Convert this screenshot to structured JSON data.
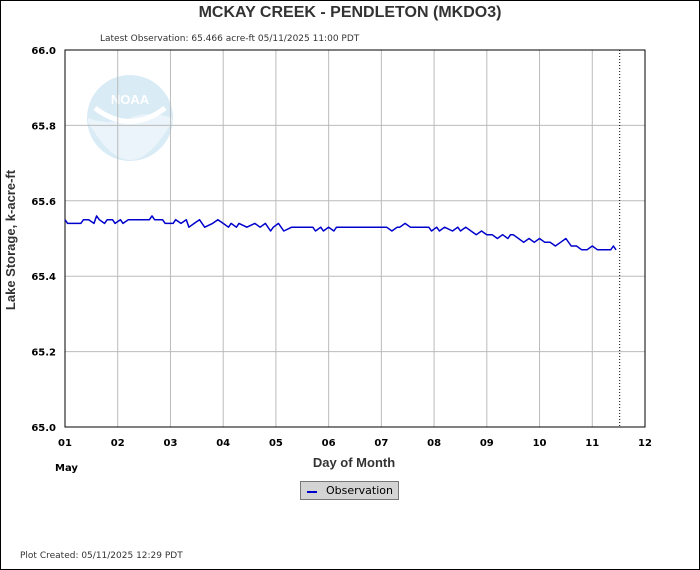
{
  "page": {
    "title": "MCKAY CREEK - PENDLETON  (MKDO3)",
    "latest_observation": "Latest Observation: 65.466 acre-ft 05/11/2025 11:00 PDT",
    "plot_created": "Plot Created: 05/11/2025 12:29 PDT",
    "logo_text": "NOAA"
  },
  "chart_data": {
    "type": "line",
    "title": "MCKAY CREEK - PENDLETON  (MKDO3)",
    "xlabel": "Day of Month",
    "ylabel": "Lake Storage, k-acre-ft",
    "month_label": "May",
    "xlim": [
      1,
      12
    ],
    "ylim": [
      65.0,
      66.0
    ],
    "x_ticks": [
      "01",
      "02",
      "03",
      "04",
      "05",
      "06",
      "07",
      "08",
      "09",
      "10",
      "11",
      "12"
    ],
    "y_ticks": [
      "65.0",
      "65.2",
      "65.4",
      "65.6",
      "65.8",
      "66.0"
    ],
    "grid": true,
    "forecast_divider_x": 11.52,
    "colors": {
      "observation": "#0000cc",
      "grid": "#bbbbbb",
      "plot_border": "#000000"
    },
    "legend": {
      "position": "bottom-center",
      "entries": [
        "Observation"
      ]
    },
    "series": [
      {
        "name": "Observation",
        "x": [
          1.0,
          1.05,
          1.3,
          1.35,
          1.45,
          1.55,
          1.6,
          1.65,
          1.75,
          1.8,
          1.9,
          1.95,
          2.05,
          2.1,
          2.2,
          2.25,
          2.3,
          2.45,
          2.6,
          2.65,
          2.7,
          2.75,
          2.85,
          2.9,
          3.05,
          3.1,
          3.2,
          3.3,
          3.35,
          3.45,
          3.55,
          3.65,
          3.8,
          3.9,
          4.0,
          4.1,
          4.15,
          4.25,
          4.3,
          4.45,
          4.6,
          4.7,
          4.8,
          4.9,
          4.95,
          5.05,
          5.15,
          5.3,
          5.5,
          5.7,
          5.75,
          5.85,
          5.9,
          6.0,
          6.1,
          6.15,
          6.3,
          6.5,
          6.7,
          6.9,
          7.1,
          7.2,
          7.3,
          7.35,
          7.45,
          7.55,
          7.7,
          7.9,
          7.95,
          8.05,
          8.1,
          8.2,
          8.35,
          8.45,
          8.5,
          8.6,
          8.7,
          8.8,
          8.9,
          9.0,
          9.1,
          9.2,
          9.3,
          9.4,
          9.45,
          9.5,
          9.6,
          9.7,
          9.8,
          9.9,
          10.0,
          10.1,
          10.2,
          10.3,
          10.4,
          10.5,
          10.6,
          10.7,
          10.8,
          10.9,
          11.0,
          11.1,
          11.2,
          11.25,
          11.3,
          11.35,
          11.4,
          11.45
        ],
        "values": [
          65.55,
          65.54,
          65.54,
          65.55,
          65.55,
          65.54,
          65.56,
          65.55,
          65.54,
          65.55,
          65.55,
          65.54,
          65.55,
          65.54,
          65.55,
          65.55,
          65.55,
          65.55,
          65.55,
          65.56,
          65.55,
          65.55,
          65.55,
          65.54,
          65.54,
          65.55,
          65.54,
          65.55,
          65.53,
          65.54,
          65.55,
          65.53,
          65.54,
          65.55,
          65.54,
          65.53,
          65.54,
          65.53,
          65.54,
          65.53,
          65.54,
          65.53,
          65.54,
          65.52,
          65.53,
          65.54,
          65.52,
          65.53,
          65.53,
          65.53,
          65.52,
          65.53,
          65.52,
          65.53,
          65.52,
          65.53,
          65.53,
          65.53,
          65.53,
          65.53,
          65.53,
          65.52,
          65.53,
          65.53,
          65.54,
          65.53,
          65.53,
          65.53,
          65.52,
          65.53,
          65.52,
          65.53,
          65.52,
          65.53,
          65.52,
          65.53,
          65.52,
          65.51,
          65.52,
          65.51,
          65.51,
          65.5,
          65.51,
          65.5,
          65.51,
          65.51,
          65.5,
          65.49,
          65.5,
          65.49,
          65.5,
          65.49,
          65.49,
          65.48,
          65.49,
          65.5,
          65.48,
          65.48,
          65.47,
          65.47,
          65.48,
          65.47,
          65.47,
          65.47,
          65.47,
          65.47,
          65.48,
          65.47
        ]
      }
    ]
  }
}
